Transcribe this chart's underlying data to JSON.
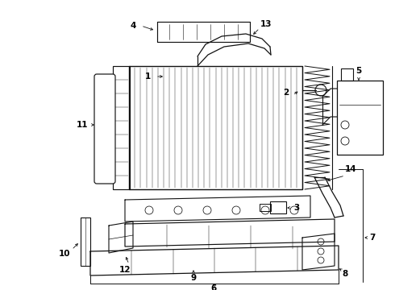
{
  "background_color": "#ffffff",
  "line_color": "#111111",
  "label_fontsize": 7.5,
  "fig_w": 4.9,
  "fig_h": 3.6,
  "dpi": 100
}
